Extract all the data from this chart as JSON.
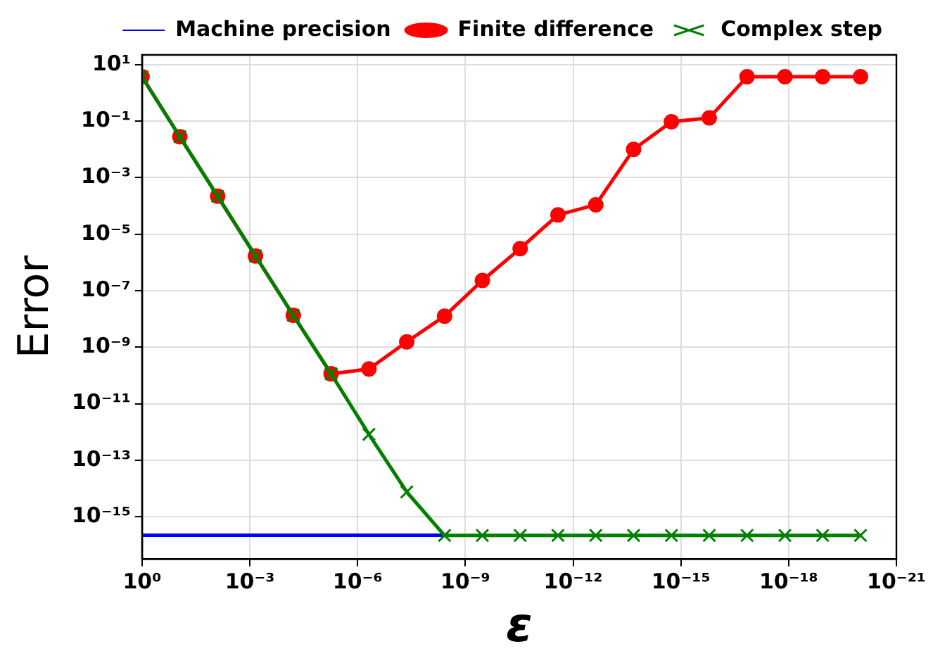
{
  "chart_data": {
    "type": "line",
    "xlabel": "ε",
    "ylabel": "Error",
    "log": "xy",
    "x": [
      1,
      0.0886,
      0.00785,
      0.000695,
      6.16e-05,
      5.46e-06,
      4.83e-07,
      4.28e-08,
      3.79e-09,
      3.36e-10,
      2.98e-11,
      2.64e-12,
      2.34e-13,
      2.07e-14,
      1.83e-15,
      1.62e-16,
      1.44e-17,
      1.27e-18,
      1.13e-19,
      1e-20
    ],
    "series": [
      {
        "name": "Machine precision",
        "color": "#0000ff",
        "marker": "none",
        "x": [
          1,
          3.79e-09
        ],
        "values": [
          2.22e-16,
          2.22e-16
        ]
      },
      {
        "name": "Finite difference",
        "color": "#ff0000",
        "marker": "circle",
        "values": [
          3.7,
          0.028,
          0.00022,
          1.7e-06,
          1.35e-08,
          1.15e-10,
          1.7e-10,
          1.55e-09,
          1.26e-08,
          2.3e-07,
          3.1e-06,
          4.8e-05,
          0.00011,
          0.01,
          0.095,
          0.13,
          3.7,
          3.7,
          3.7,
          3.7
        ]
      },
      {
        "name": "Complex step",
        "color": "#008000",
        "marker": "cross",
        "values": [
          3.7,
          0.028,
          0.00022,
          1.7e-06,
          1.35e-08,
          1.15e-10,
          8.3e-13,
          7.6e-15,
          2.2e-16,
          2.2e-16,
          2.2e-16,
          2.2e-16,
          2.2e-16,
          2.2e-16,
          2.2e-16,
          2.2e-16,
          2.2e-16,
          2.2e-16,
          2.2e-16,
          2.2e-16
        ]
      }
    ],
    "xlim": [
      1,
      1e-21
    ],
    "xticks": [
      {
        "value": 1,
        "label": "10⁰"
      },
      {
        "value": 0.001,
        "label": "10⁻³"
      },
      {
        "value": 1e-06,
        "label": "10⁻⁶"
      },
      {
        "value": 1e-09,
        "label": "10⁻⁹"
      },
      {
        "value": 1e-12,
        "label": "10⁻¹²"
      },
      {
        "value": 1e-15,
        "label": "10⁻¹⁵"
      },
      {
        "value": 1e-18,
        "label": "10⁻¹⁸"
      },
      {
        "value": 1e-21,
        "label": "10⁻²¹"
      }
    ],
    "ylim": [
      3.2e-17,
      22
    ],
    "yticks": [
      {
        "value": 10,
        "label": "10¹"
      },
      {
        "value": 0.1,
        "label": "10⁻¹"
      },
      {
        "value": 0.001,
        "label": "10⁻³"
      },
      {
        "value": 1e-05,
        "label": "10⁻⁵"
      },
      {
        "value": 1e-07,
        "label": "10⁻⁷"
      },
      {
        "value": 1e-09,
        "label": "10⁻⁹"
      },
      {
        "value": 1e-11,
        "label": "10⁻¹¹"
      },
      {
        "value": 1e-13,
        "label": "10⁻¹³"
      },
      {
        "value": 1e-15,
        "label": "10⁻¹⁵"
      }
    ],
    "grid": true,
    "legend": "top right",
    "line_style": "solid"
  }
}
